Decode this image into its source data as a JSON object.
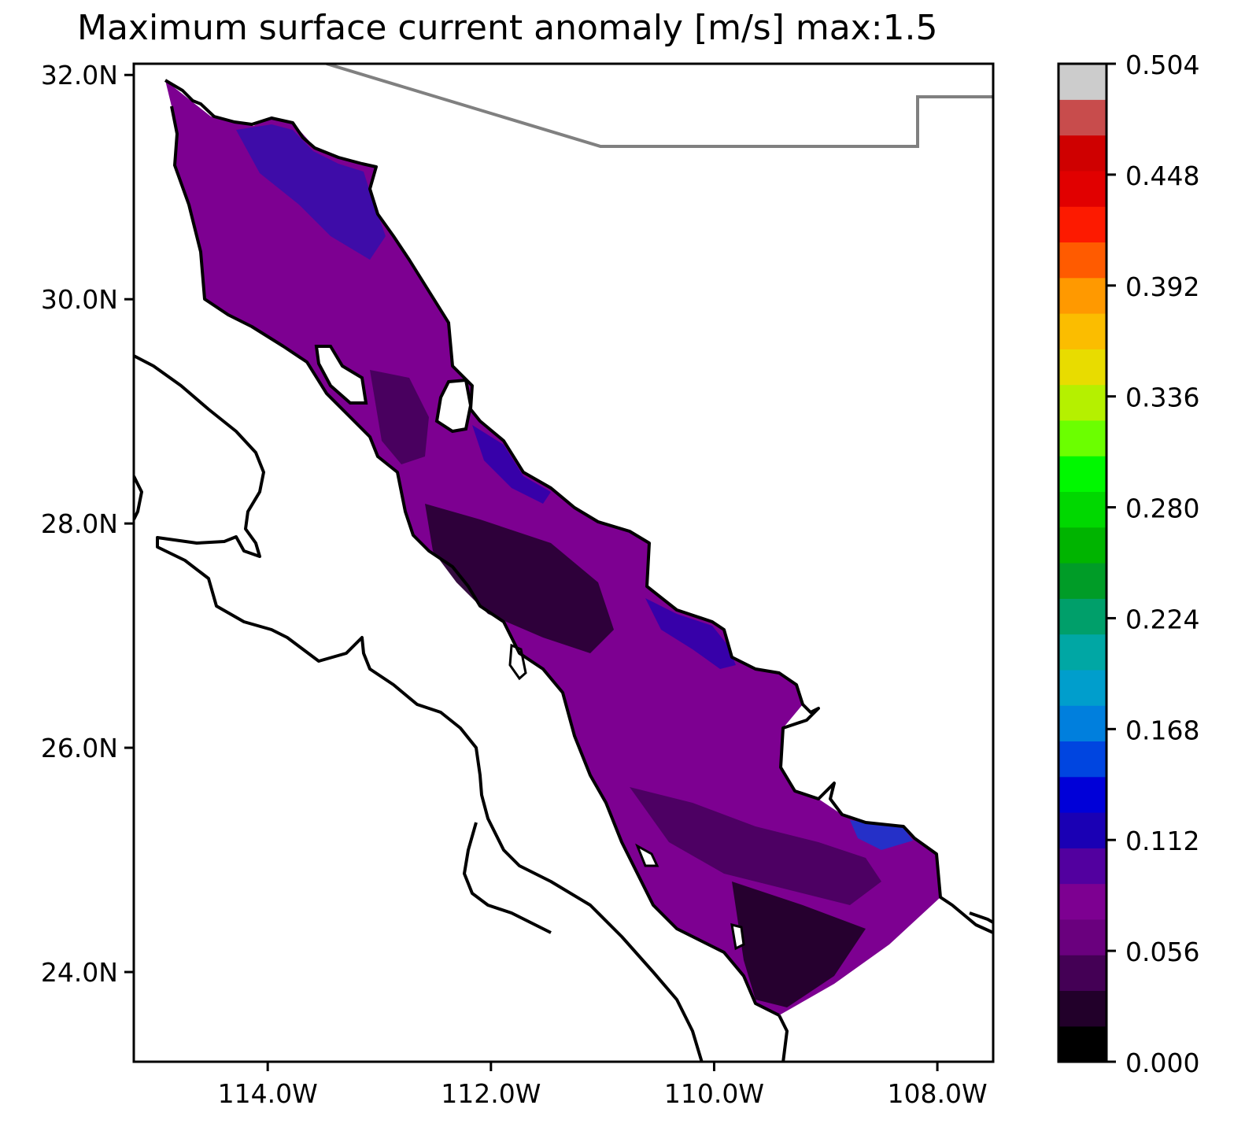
{
  "title": "Maximum surface current anomaly [m/s] max:1.5",
  "map": {
    "lat_labels": [
      "32.0N",
      "30.0N",
      "28.0N",
      "26.0N",
      "24.0N"
    ],
    "lon_labels": [
      "114.0W",
      "112.0W",
      "110.0W",
      "108.0W"
    ],
    "lat_range": [
      23.2,
      32.1
    ],
    "lon_range": [
      -115.2,
      -107.5
    ]
  },
  "colorbar": {
    "tick_labels": [
      "0.504",
      "0.448",
      "0.392",
      "0.336",
      "0.280",
      "0.224",
      "0.168",
      "0.112",
      "0.056",
      "0.000"
    ],
    "range": [
      0,
      0.504
    ],
    "colormap": "nipy_spectral",
    "colors": [
      "#000000",
      "#22002a",
      "#440055",
      "#6a007e",
      "#7d0091",
      "#52009f",
      "#1a00b4",
      "#0000d8",
      "#0045e0",
      "#007fdd",
      "#009ecc",
      "#00a7a4",
      "#009f6a",
      "#009c27",
      "#00b400",
      "#00d800",
      "#00f800",
      "#6bff00",
      "#b5f000",
      "#e8dc00",
      "#fbbd00",
      "#ff9900",
      "#ff5b00",
      "#fd1a00",
      "#e10000",
      "#cf0000",
      "#c84c4c",
      "#cccccc"
    ]
  }
}
